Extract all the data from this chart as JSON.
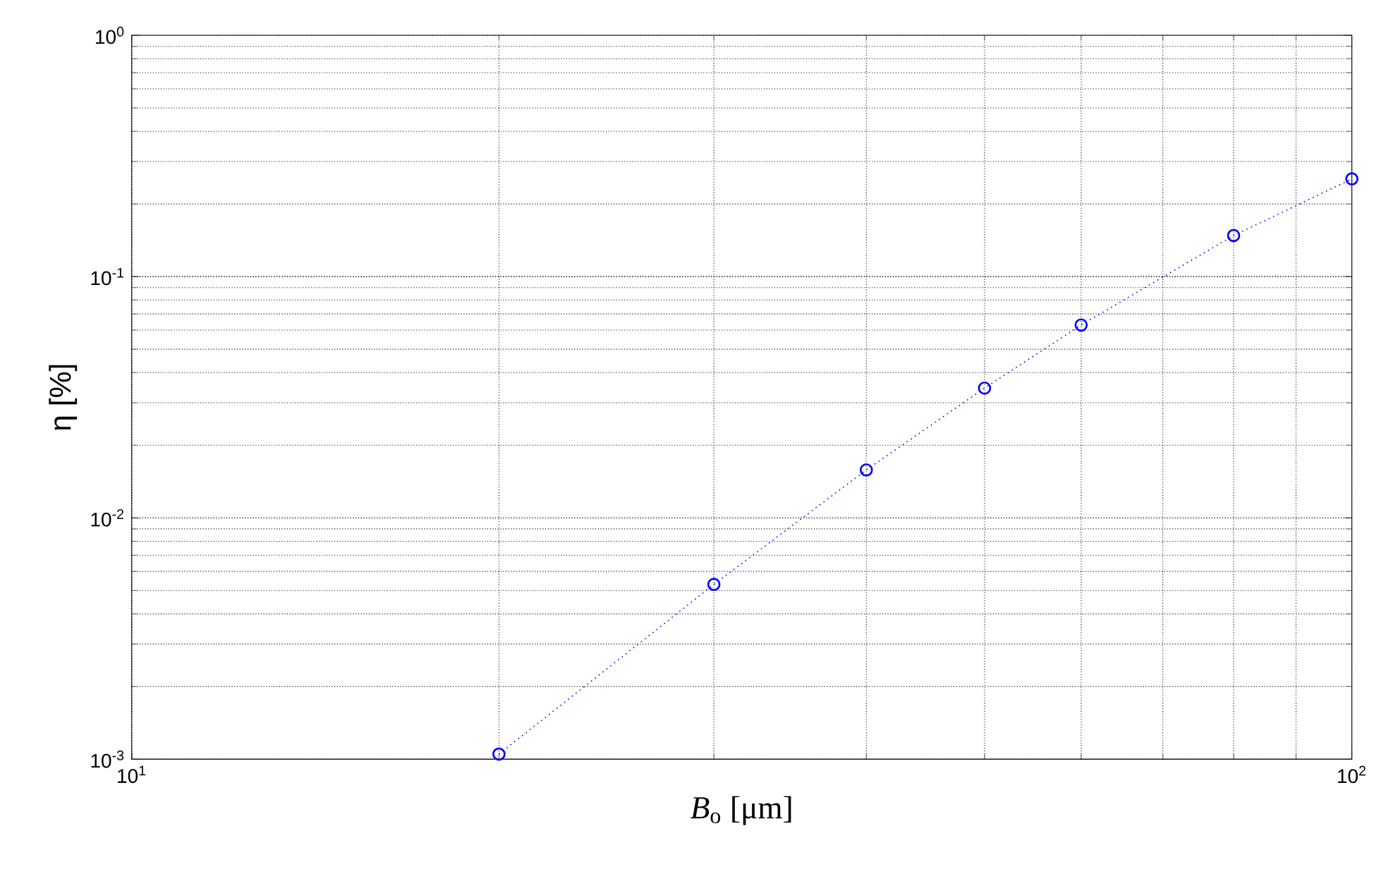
{
  "chart_data": {
    "type": "line",
    "xlabel": "*B*$_{o}$ [μm]",
    "ylabel": "η [%]",
    "x": [
      20,
      30,
      40,
      50,
      60,
      80,
      100
    ],
    "series": [
      {
        "color": "#0000ff",
        "values": [
          0.00105,
          0.0053,
          0.0158,
          0.0345,
          0.063,
          0.148,
          0.254
        ]
      }
    ],
    "log": "xy",
    "xlim": [
      10,
      100
    ],
    "ylim": [
      0.001,
      1
    ],
    "xticks": [
      {
        "value": 10,
        "label": "10$^{1}$"
      },
      {
        "value": 100,
        "label": "10$^{2}$"
      }
    ],
    "yticks": [
      {
        "value": 0.001,
        "label": "10$^{-3}$"
      },
      {
        "value": 0.01,
        "label": "10$^{-2}$"
      },
      {
        "value": 0.1,
        "label": "10$^{-1}$"
      },
      {
        "value": 1,
        "label": "10$^{0}$"
      }
    ],
    "grid": true,
    "marker": "circle",
    "line_style": "dotted"
  }
}
